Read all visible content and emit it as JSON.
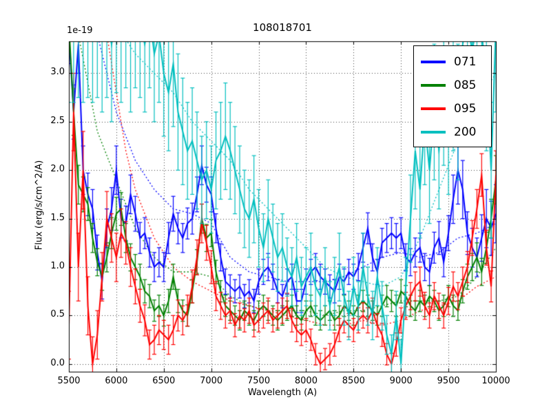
{
  "figure": {
    "title": "108018701",
    "xlabel": "Wavelength (A)",
    "ylabel": "Flux (erg/s/cm^2/A)",
    "offset_text": "1e-19"
  },
  "legend": {
    "position": "upper right",
    "entries": [
      {
        "label": "071",
        "color": "#0000ff"
      },
      {
        "label": "085",
        "color": "#008000"
      },
      {
        "label": "095",
        "color": "#ff0000"
      },
      {
        "label": "200",
        "color": "#00bfbf"
      }
    ]
  },
  "chart_data": {
    "type": "line",
    "title": "108018701",
    "xlabel": "Wavelength (A)",
    "ylabel": "Flux (erg/s/cm^2/A)",
    "y_offset_factor": "1e-19",
    "grid": true,
    "legend_position": "upper right",
    "xlim": [
      5500,
      10000
    ],
    "ylim": [
      -0.08,
      3.33
    ],
    "xticks": [
      5500,
      6000,
      6500,
      7000,
      7500,
      8000,
      8500,
      9000,
      9500,
      10000
    ],
    "yticks": [
      0.0,
      0.5,
      1.0,
      1.5,
      2.0,
      2.5,
      3.0
    ],
    "xtick_labels": [
      "5500",
      "6000",
      "6500",
      "7000",
      "7500",
      "8000",
      "8500",
      "9000",
      "9500",
      "10000"
    ],
    "ytick_labels": [
      "0.0",
      "0.5",
      "1.0",
      "1.5",
      "2.0",
      "2.5",
      "3.0"
    ],
    "x_start": 5500,
    "x_step": 50,
    "series": [
      {
        "name": "071",
        "color": "#0000ff",
        "style": "solid",
        "errorbars": true,
        "values": [
          3.4,
          2.6,
          3.3,
          2.0,
          1.75,
          1.6,
          1.15,
          0.85,
          1.4,
          1.6,
          2.0,
          1.5,
          1.45,
          1.75,
          1.55,
          1.3,
          1.35,
          1.15,
          1.0,
          1.05,
          1.0,
          1.3,
          1.55,
          1.4,
          1.3,
          1.45,
          1.5,
          1.75,
          2.05,
          1.85,
          1.75,
          1.4,
          1.1,
          0.85,
          0.8,
          0.75,
          0.8,
          0.7,
          0.75,
          0.65,
          0.85,
          0.95,
          1.0,
          0.9,
          0.75,
          0.7,
          0.85,
          0.9,
          0.65,
          0.65,
          0.85,
          0.95,
          1.0,
          0.9,
          0.85,
          0.8,
          0.75,
          0.9,
          0.85,
          0.95,
          0.9,
          1.0,
          1.2,
          1.4,
          1.1,
          0.95,
          1.25,
          1.3,
          1.35,
          1.3,
          1.35,
          1.1,
          1.05,
          1.15,
          1.2,
          1.0,
          0.95,
          1.2,
          1.3,
          1.05,
          1.35,
          1.7,
          2.0,
          1.8,
          1.35,
          1.2,
          1.1,
          1.3,
          1.5,
          1.4,
          1.55
        ],
        "errors": [
          0.3,
          0.28,
          0.3,
          0.25,
          0.22,
          0.2,
          0.18,
          0.18,
          0.2,
          0.22,
          0.25,
          0.2,
          0.18,
          0.2,
          0.18,
          0.16,
          0.16,
          0.15,
          0.15,
          0.15,
          0.15,
          0.16,
          0.18,
          0.16,
          0.15,
          0.16,
          0.16,
          0.18,
          0.2,
          0.18,
          0.18,
          0.15,
          0.14,
          0.13,
          0.12,
          0.12,
          0.12,
          0.12,
          0.12,
          0.12,
          0.13,
          0.13,
          0.14,
          0.13,
          0.12,
          0.12,
          0.13,
          0.13,
          0.12,
          0.12,
          0.13,
          0.13,
          0.14,
          0.13,
          0.13,
          0.12,
          0.12,
          0.13,
          0.13,
          0.13,
          0.13,
          0.14,
          0.15,
          0.16,
          0.14,
          0.13,
          0.15,
          0.15,
          0.16,
          0.15,
          0.16,
          0.14,
          0.14,
          0.15,
          0.15,
          0.14,
          0.14,
          0.16,
          0.17,
          0.15,
          0.18,
          0.25,
          0.35,
          0.3,
          0.22,
          0.2,
          0.2,
          0.24,
          0.3,
          0.28,
          0.3
        ]
      },
      {
        "name": "085",
        "color": "#008000",
        "style": "solid",
        "errorbars": true,
        "values": [
          3.5,
          2.6,
          1.85,
          1.75,
          1.65,
          1.3,
          1.05,
          0.9,
          1.1,
          1.35,
          1.55,
          1.6,
          1.3,
          1.1,
          1.0,
          0.9,
          0.75,
          0.7,
          0.55,
          0.6,
          0.5,
          0.65,
          0.9,
          0.65,
          0.55,
          0.5,
          0.75,
          1.05,
          1.5,
          1.3,
          1.35,
          0.95,
          0.75,
          0.6,
          0.55,
          0.5,
          0.45,
          0.55,
          0.5,
          0.45,
          0.55,
          0.6,
          0.55,
          0.5,
          0.45,
          0.5,
          0.55,
          0.6,
          0.5,
          0.45,
          0.55,
          0.6,
          0.5,
          0.45,
          0.5,
          0.55,
          0.45,
          0.5,
          0.6,
          0.55,
          0.5,
          0.6,
          0.65,
          0.6,
          0.55,
          0.5,
          0.6,
          0.7,
          0.65,
          0.6,
          0.75,
          0.7,
          0.6,
          0.55,
          0.65,
          0.6,
          0.7,
          0.65,
          0.55,
          0.6,
          0.7,
          0.6,
          0.55,
          0.75,
          0.9,
          1.0,
          1.1,
          0.95,
          1.2,
          1.5,
          1.9
        ],
        "errors": [
          0.28,
          0.24,
          0.2,
          0.18,
          0.17,
          0.15,
          0.14,
          0.14,
          0.15,
          0.16,
          0.17,
          0.17,
          0.15,
          0.14,
          0.13,
          0.13,
          0.12,
          0.12,
          0.11,
          0.11,
          0.11,
          0.12,
          0.13,
          0.12,
          0.11,
          0.11,
          0.12,
          0.13,
          0.15,
          0.14,
          0.14,
          0.12,
          0.11,
          0.11,
          0.1,
          0.1,
          0.1,
          0.1,
          0.1,
          0.1,
          0.1,
          0.11,
          0.1,
          0.1,
          0.1,
          0.1,
          0.1,
          0.11,
          0.1,
          0.1,
          0.1,
          0.11,
          0.1,
          0.1,
          0.1,
          0.1,
          0.1,
          0.1,
          0.11,
          0.1,
          0.1,
          0.11,
          0.11,
          0.11,
          0.1,
          0.1,
          0.11,
          0.11,
          0.11,
          0.11,
          0.12,
          0.11,
          0.11,
          0.1,
          0.11,
          0.11,
          0.11,
          0.11,
          0.1,
          0.11,
          0.11,
          0.11,
          0.1,
          0.12,
          0.13,
          0.14,
          0.15,
          0.14,
          0.16,
          0.2,
          0.25
        ]
      },
      {
        "name": "095",
        "color": "#ff0000",
        "style": "solid",
        "errorbars": true,
        "values": [
          0.4,
          2.6,
          1.0,
          2.0,
          0.6,
          0.0,
          0.3,
          0.9,
          1.5,
          1.3,
          1.1,
          1.35,
          1.25,
          1.0,
          0.8,
          0.6,
          0.45,
          0.2,
          0.25,
          0.35,
          0.3,
          0.25,
          0.35,
          0.5,
          0.45,
          0.55,
          0.8,
          1.1,
          1.45,
          1.25,
          1.0,
          0.7,
          0.6,
          0.5,
          0.55,
          0.4,
          0.5,
          0.45,
          0.55,
          0.4,
          0.45,
          0.5,
          0.55,
          0.45,
          0.5,
          0.55,
          0.6,
          0.45,
          0.35,
          0.3,
          0.35,
          0.25,
          0.1,
          0.0,
          0.05,
          0.1,
          0.2,
          0.35,
          0.45,
          0.4,
          0.35,
          0.45,
          0.5,
          0.45,
          0.55,
          0.4,
          0.3,
          0.1,
          0.0,
          0.2,
          0.45,
          0.6,
          0.7,
          0.8,
          0.85,
          0.6,
          0.5,
          0.7,
          0.6,
          0.5,
          0.65,
          0.8,
          0.7,
          0.85,
          1.0,
          1.3,
          1.6,
          1.95,
          1.2,
          0.8,
          1.95
        ],
        "errors": [
          0.35,
          0.4,
          0.35,
          0.4,
          0.3,
          0.28,
          0.25,
          0.25,
          0.28,
          0.25,
          0.25,
          0.25,
          0.22,
          0.2,
          0.18,
          0.17,
          0.16,
          0.15,
          0.15,
          0.15,
          0.15,
          0.15,
          0.15,
          0.16,
          0.15,
          0.16,
          0.17,
          0.18,
          0.2,
          0.18,
          0.17,
          0.15,
          0.14,
          0.13,
          0.13,
          0.12,
          0.13,
          0.12,
          0.13,
          0.12,
          0.12,
          0.13,
          0.13,
          0.12,
          0.13,
          0.13,
          0.13,
          0.12,
          0.12,
          0.11,
          0.12,
          0.11,
          0.11,
          0.11,
          0.11,
          0.11,
          0.12,
          0.12,
          0.13,
          0.12,
          0.12,
          0.13,
          0.13,
          0.13,
          0.13,
          0.12,
          0.12,
          0.11,
          0.11,
          0.12,
          0.13,
          0.14,
          0.14,
          0.15,
          0.15,
          0.14,
          0.13,
          0.14,
          0.13,
          0.13,
          0.14,
          0.15,
          0.14,
          0.15,
          0.16,
          0.18,
          0.2,
          0.22,
          0.18,
          0.16,
          0.25
        ]
      },
      {
        "name": "200",
        "color": "#00bfbf",
        "style": "solid",
        "errorbars": true,
        "values": [
          3.6,
          3.6,
          3.6,
          3.6,
          3.6,
          3.5,
          3.6,
          3.4,
          3.6,
          3.3,
          3.6,
          3.5,
          3.6,
          3.4,
          3.6,
          3.5,
          3.3,
          3.6,
          3.2,
          3.4,
          3.0,
          2.8,
          3.1,
          2.6,
          2.4,
          2.2,
          2.3,
          2.1,
          1.9,
          2.0,
          1.8,
          2.1,
          2.2,
          2.35,
          2.2,
          2.0,
          1.8,
          1.6,
          1.5,
          1.7,
          1.4,
          1.2,
          1.5,
          1.3,
          1.1,
          1.2,
          1.0,
          0.9,
          1.1,
          0.8,
          0.9,
          1.0,
          0.8,
          0.7,
          0.9,
          0.6,
          0.8,
          1.0,
          0.7,
          0.5,
          0.8,
          0.6,
          1.0,
          0.7,
          0.5,
          0.9,
          0.6,
          0.3,
          0.1,
          0.5,
          0.0,
          0.8,
          1.5,
          2.2,
          1.8,
          2.5,
          2.0,
          2.6,
          2.2,
          2.8,
          2.4,
          3.0,
          2.6,
          3.3,
          3.6,
          3.2,
          3.6,
          3.4,
          3.0,
          2.0,
          3.5
        ],
        "errors": [
          0.9,
          0.9,
          0.85,
          0.9,
          0.85,
          0.8,
          0.85,
          0.8,
          0.85,
          0.8,
          0.8,
          0.8,
          0.75,
          0.8,
          0.75,
          0.75,
          0.7,
          0.75,
          0.7,
          0.7,
          0.65,
          0.6,
          0.65,
          0.6,
          0.55,
          0.5,
          0.55,
          0.5,
          0.45,
          0.5,
          0.45,
          0.5,
          0.5,
          0.55,
          0.5,
          0.45,
          0.45,
          0.4,
          0.4,
          0.45,
          0.4,
          0.35,
          0.4,
          0.35,
          0.35,
          0.35,
          0.3,
          0.3,
          0.35,
          0.3,
          0.3,
          0.35,
          0.3,
          0.3,
          0.3,
          0.25,
          0.3,
          0.35,
          0.3,
          0.25,
          0.3,
          0.25,
          0.35,
          0.3,
          0.25,
          0.3,
          0.25,
          0.2,
          0.2,
          0.25,
          0.25,
          0.3,
          0.45,
          0.6,
          0.5,
          0.65,
          0.55,
          0.7,
          0.6,
          0.75,
          0.65,
          0.8,
          0.7,
          0.85,
          0.9,
          0.85,
          0.9,
          0.85,
          0.8,
          0.7,
          0.9
        ]
      },
      {
        "name": "071 model",
        "color": "#0000ff",
        "style": "dotted",
        "errorbars": false,
        "x": [
          5800,
          6000,
          6200,
          6400,
          6600,
          6800,
          7000,
          7200,
          7400,
          7600,
          7800,
          8000,
          8200,
          8400,
          8600,
          8800,
          9000,
          9200,
          9400,
          9600,
          9800,
          10000
        ],
        "values": [
          3.4,
          2.6,
          2.1,
          1.8,
          1.6,
          1.55,
          1.45,
          1.1,
          0.95,
          0.9,
          0.85,
          0.85,
          0.85,
          0.9,
          1.0,
          1.1,
          1.15,
          1.1,
          1.15,
          1.3,
          1.35,
          1.45
        ]
      },
      {
        "name": "085 model",
        "color": "#008000",
        "style": "dotted",
        "errorbars": false,
        "x": [
          5600,
          5800,
          6000,
          6200,
          6400,
          6600,
          6800,
          7000,
          7200,
          7400,
          7600,
          7800,
          8000,
          8200,
          8400,
          8600,
          8800,
          9000,
          9200,
          9400,
          9600,
          9800,
          10000
        ],
        "values": [
          3.4,
          2.4,
          1.9,
          1.4,
          1.1,
          0.95,
          0.95,
          0.9,
          0.7,
          0.6,
          0.55,
          0.55,
          0.55,
          0.5,
          0.55,
          0.55,
          0.6,
          0.65,
          0.65,
          0.65,
          0.7,
          0.9,
          1.2
        ]
      },
      {
        "name": "095 model",
        "color": "#ff0000",
        "style": "dotted",
        "errorbars": false,
        "x": [
          5900,
          6000,
          6100,
          6200,
          6400,
          6600,
          6800,
          7000,
          7200,
          7400,
          7600,
          7800,
          8000,
          8200,
          8400,
          8600,
          8800,
          9000,
          9200,
          9400,
          9600,
          9800,
          10000
        ],
        "values": [
          3.4,
          2.8,
          2.2,
          1.8,
          1.3,
          1.0,
          0.85,
          0.75,
          0.65,
          0.6,
          0.55,
          0.5,
          0.45,
          0.4,
          0.4,
          0.45,
          0.4,
          0.45,
          0.55,
          0.6,
          0.65,
          0.8,
          0.9
        ]
      },
      {
        "name": "200 model",
        "color": "#00bfbf",
        "style": "dotted",
        "errorbars": false,
        "x": [
          6000,
          6200,
          6400,
          6600,
          6800,
          7000,
          7200,
          7400,
          7600,
          7800,
          8000,
          8200,
          8400,
          8600,
          8800,
          9000,
          9200,
          9400,
          9600,
          9800,
          10000
        ],
        "values": [
          3.5,
          3.2,
          3.0,
          2.8,
          2.5,
          2.3,
          2.1,
          1.8,
          1.6,
          1.4,
          1.2,
          1.0,
          0.9,
          0.85,
          0.8,
          0.9,
          1.3,
          1.8,
          2.3,
          2.7,
          3.0
        ]
      }
    ]
  }
}
